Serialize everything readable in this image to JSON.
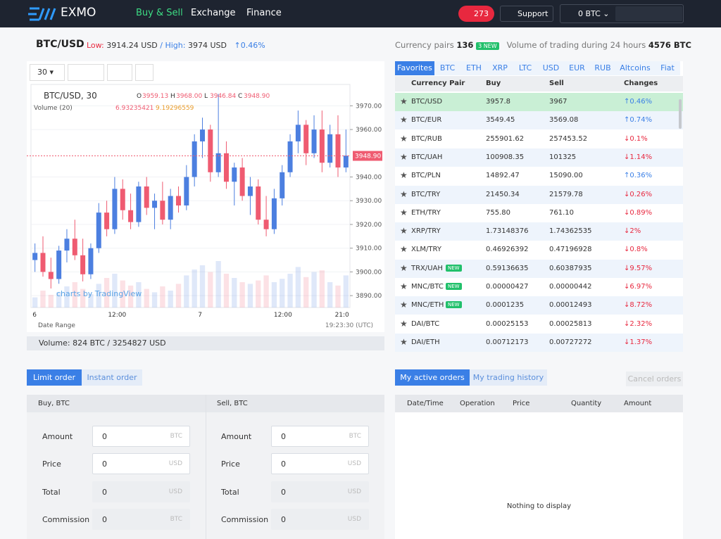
{
  "header": {
    "logo": "EXMO",
    "nav": [
      "Buy & Sell",
      "Exchange",
      "Finance"
    ],
    "notifications": "273",
    "support": "Support",
    "balance": "0 BTC"
  },
  "ticker": {
    "pair": "BTC/USD",
    "low_label": "Low:",
    "low": "3914.24 USD",
    "high_label": "/ High:",
    "high": "3974 USD",
    "change": "↑0.46%"
  },
  "chart": {
    "interval": "30",
    "symbol": "BTC/USD, 30",
    "ohlc": [
      {
        "key": "O",
        "value": "3959.13"
      },
      {
        "key": "H",
        "value": "3968.00"
      },
      {
        "key": "L",
        "value": "3946.84"
      },
      {
        "key": "C",
        "value": "3948.90"
      }
    ],
    "volume_label": "Volume (20)",
    "volume_values": [
      "6.93235421",
      "9.19296559"
    ],
    "ylim": [
      3885,
      3979
    ],
    "yticks": [
      {
        "value": 3970,
        "label": "3970.00"
      },
      {
        "value": 3960,
        "label": "3960.00"
      },
      {
        "value": 3940,
        "label": "3940.00"
      },
      {
        "value": 3930,
        "label": "3930.00"
      },
      {
        "value": 3920,
        "label": "3920.00"
      },
      {
        "value": 3910,
        "label": "3910.00"
      },
      {
        "value": 3900,
        "label": "3900.00"
      },
      {
        "value": 3890,
        "label": "3890.00"
      }
    ],
    "last_price": {
      "value": 3948.9,
      "label": "3948.90"
    },
    "x_labels": [
      "6",
      "12:00",
      "7",
      "12:00",
      "21:0"
    ],
    "date_range": "Date Range",
    "time": "19:23:30 (UTC)",
    "watermark": "charts by TradingView",
    "up_color": "#4c7fe0",
    "down_color": "#ef5b71",
    "candles": [
      [
        3905,
        3912,
        3900,
        3908
      ],
      [
        3908,
        3915,
        3898,
        3900
      ],
      [
        3900,
        3906,
        3893,
        3897
      ],
      [
        3897,
        3911,
        3895,
        3909
      ],
      [
        3909,
        3918,
        3904,
        3914
      ],
      [
        3914,
        3922,
        3905,
        3907
      ],
      [
        3907,
        3914,
        3896,
        3899
      ],
      [
        3899,
        3912,
        3897,
        3910
      ],
      [
        3910,
        3929,
        3908,
        3925
      ],
      [
        3925,
        3930,
        3915,
        3918
      ],
      [
        3918,
        3940,
        3916,
        3935
      ],
      [
        3935,
        3939,
        3922,
        3926
      ],
      [
        3926,
        3933,
        3918,
        3921
      ],
      [
        3921,
        3938,
        3919,
        3936
      ],
      [
        3936,
        3940,
        3924,
        3927
      ],
      [
        3927,
        3933,
        3918,
        3930
      ],
      [
        3930,
        3938,
        3920,
        3922
      ],
      [
        3922,
        3935,
        3918,
        3932
      ],
      [
        3932,
        3936,
        3925,
        3928
      ],
      [
        3928,
        3945,
        3926,
        3940
      ],
      [
        3940,
        3958,
        3936,
        3955
      ],
      [
        3955,
        3965,
        3948,
        3960
      ],
      [
        3960,
        3962,
        3938,
        3942
      ],
      [
        3942,
        3975,
        3940,
        3950
      ],
      [
        3950,
        3955,
        3935,
        3938
      ],
      [
        3938,
        3946,
        3928,
        3944
      ],
      [
        3944,
        3948,
        3930,
        3932
      ],
      [
        3932,
        3940,
        3924,
        3936
      ],
      [
        3936,
        3939,
        3920,
        3922
      ],
      [
        3922,
        3932,
        3915,
        3918
      ],
      [
        3918,
        3935,
        3916,
        3931
      ],
      [
        3931,
        3945,
        3928,
        3942
      ],
      [
        3942,
        3958,
        3940,
        3955
      ],
      [
        3955,
        3968,
        3950,
        3962
      ],
      [
        3962,
        3964,
        3945,
        3950
      ],
      [
        3950,
        3966,
        3948,
        3960
      ],
      [
        3960,
        3968,
        3942,
        3946
      ],
      [
        3946,
        3962,
        3944,
        3958
      ],
      [
        3958,
        3966,
        3940,
        3944
      ],
      [
        3944,
        3960,
        3942,
        3949
      ]
    ],
    "volumes": [
      12,
      20,
      15,
      18,
      25,
      30,
      22,
      16,
      28,
      35,
      40,
      32,
      26,
      30,
      22,
      18,
      25,
      20,
      28,
      38,
      45,
      50,
      42,
      55,
      40,
      35,
      30,
      28,
      32,
      38,
      30,
      34,
      40,
      48,
      36,
      42,
      44,
      30,
      26,
      38
    ],
    "volume_total": "Volume: 824 BTC / 3254827 USD"
  },
  "market": {
    "pairs_label": "Currency pairs",
    "pairs_count": "136",
    "new_badge": "3 NEW",
    "volume_label": "Volume of trading during 24 hours",
    "volume": "4576 BTC",
    "tabs": [
      "Favorites",
      "BTC",
      "ETH",
      "XRP",
      "LTC",
      "USD",
      "EUR",
      "RUB",
      "Altcoins",
      "Fiat"
    ],
    "columns": [
      "Currency Pair",
      "Buy",
      "Sell",
      "Changes"
    ],
    "new_tag": "NEW",
    "rows": [
      {
        "pair": "BTC/USD",
        "buy": "3957.8",
        "sell": "3967",
        "change": "↑0.46%"
      },
      {
        "pair": "BTC/EUR",
        "buy": "3549.45",
        "sell": "3569.08",
        "change": "↑0.74%"
      },
      {
        "pair": "BTC/RUB",
        "buy": "255901.62",
        "sell": "257453.52",
        "change": "↓0.1%"
      },
      {
        "pair": "BTC/UAH",
        "buy": "100908.35",
        "sell": "101325",
        "change": "↓1.14%"
      },
      {
        "pair": "BTC/PLN",
        "buy": "14892.47",
        "sell": "15090.00",
        "change": "↑0.36%"
      },
      {
        "pair": "BTC/TRY",
        "buy": "21450.34",
        "sell": "21579.78",
        "change": "↓0.26%"
      },
      {
        "pair": "ETH/TRY",
        "buy": "755.80",
        "sell": "761.10",
        "change": "↓0.89%"
      },
      {
        "pair": "XRP/TRY",
        "buy": "1.73148376",
        "sell": "1.74362535",
        "change": "↓2%"
      },
      {
        "pair": "XLM/TRY",
        "buy": "0.46926392",
        "sell": "0.47196928",
        "change": "↓0.8%"
      },
      {
        "pair": "TRX/UAH",
        "new": true,
        "buy": "0.59136635",
        "sell": "0.60387935",
        "change": "↓9.57%"
      },
      {
        "pair": "MNC/BTC",
        "new": true,
        "buy": "0.00000427",
        "sell": "0.00000442",
        "change": "↓6.97%"
      },
      {
        "pair": "MNC/ETH",
        "new": true,
        "buy": "0.0001235",
        "sell": "0.00012493",
        "change": "↓8.72%"
      },
      {
        "pair": "DAI/BTC",
        "buy": "0.00025153",
        "sell": "0.00025813",
        "change": "↓2.32%"
      },
      {
        "pair": "DAI/ETH",
        "buy": "0.00712173",
        "sell": "0.00727272",
        "change": "↓1.37%"
      }
    ]
  },
  "order_form": {
    "tabs": [
      "Limit order",
      "Instant order"
    ],
    "sides": [
      {
        "title": "Buy, BTC",
        "fields": [
          {
            "label": "Amount",
            "value": "0",
            "unit": "BTC"
          },
          {
            "label": "Price",
            "value": "0",
            "unit": "USD"
          },
          {
            "label": "Total",
            "value": "0",
            "unit": "USD"
          },
          {
            "label": "Commission",
            "value": "0",
            "unit": "BTC"
          }
        ]
      },
      {
        "title": "Sell, BTC",
        "fields": [
          {
            "label": "Amount",
            "value": "0",
            "unit": "BTC"
          },
          {
            "label": "Price",
            "value": "0",
            "unit": "USD"
          },
          {
            "label": "Total",
            "value": "0",
            "unit": "USD"
          },
          {
            "label": "Commission",
            "value": "0",
            "unit": "USD"
          }
        ]
      }
    ]
  },
  "orders": {
    "tabs": [
      "My active orders",
      "My trading history"
    ],
    "cancel": "Cancel orders",
    "columns": [
      "Date/Time",
      "Operation",
      "Price",
      "Quantity",
      "Amount"
    ],
    "empty": "Nothing to display"
  }
}
